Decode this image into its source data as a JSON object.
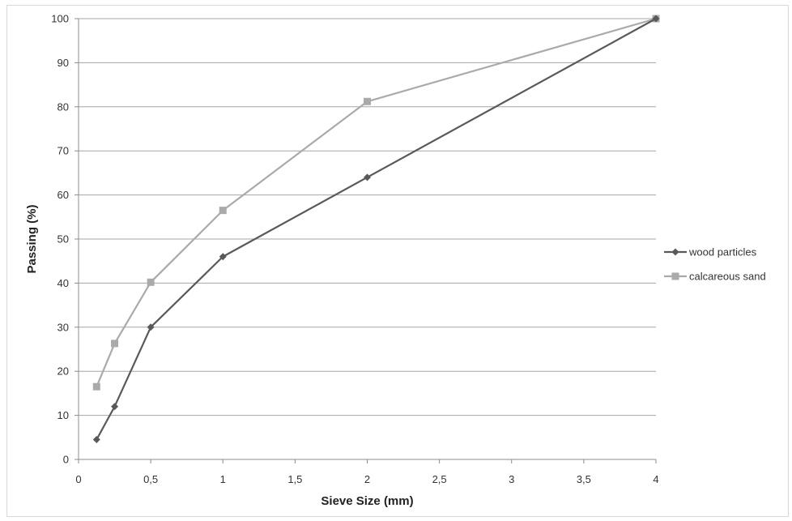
{
  "chart_data": {
    "type": "line",
    "xlabel": "Sieve Size (mm)",
    "ylabel": "Passing (%)",
    "xlim": [
      0,
      4
    ],
    "ylim": [
      0,
      100
    ],
    "x_ticks": [
      0,
      0.5,
      1,
      1.5,
      2,
      2.5,
      3,
      3.5,
      4
    ],
    "x_tick_labels": [
      "0",
      "0,5",
      "1",
      "1,5",
      "2",
      "2,5",
      "3",
      "3,5",
      "4"
    ],
    "y_ticks": [
      0,
      10,
      20,
      30,
      40,
      50,
      60,
      70,
      80,
      90,
      100
    ],
    "y_tick_labels": [
      "0",
      "10",
      "20",
      "30",
      "40",
      "50",
      "60",
      "70",
      "80",
      "90",
      "100"
    ],
    "grid": "horizontal",
    "legend_position": "right",
    "series": [
      {
        "name": "wood particles",
        "color": "#595959",
        "marker": "diamond",
        "x": [
          0.125,
          0.25,
          0.5,
          1,
          2,
          4
        ],
        "y": [
          4.5,
          12,
          30,
          46,
          64,
          100
        ]
      },
      {
        "name": "calcareous sand",
        "color": "#aaaaaa",
        "marker": "square",
        "x": [
          0.125,
          0.25,
          0.5,
          1,
          2,
          4
        ],
        "y": [
          16.5,
          26.3,
          40.2,
          56.5,
          81.2,
          100
        ]
      }
    ]
  }
}
